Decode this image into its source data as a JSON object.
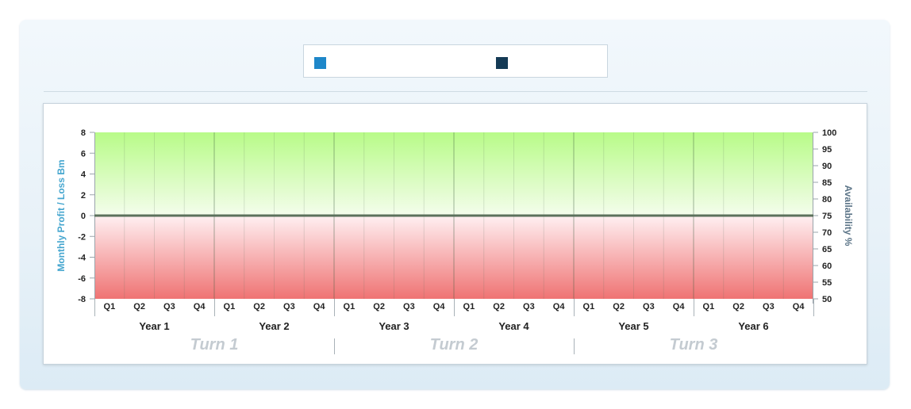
{
  "legend": {
    "items": [
      {
        "color": "#1e87c9",
        "label": ""
      },
      {
        "color": "#143a55",
        "label": ""
      }
    ]
  },
  "chart_data": {
    "type": "line",
    "categories": [
      "Q1",
      "Q2",
      "Q3",
      "Q4",
      "Q1",
      "Q2",
      "Q3",
      "Q4",
      "Q1",
      "Q2",
      "Q3",
      "Q4",
      "Q1",
      "Q2",
      "Q3",
      "Q4",
      "Q1",
      "Q2",
      "Q3",
      "Q4",
      "Q1",
      "Q2",
      "Q3",
      "Q4"
    ],
    "years": [
      "Year 1",
      "Year 2",
      "Year 3",
      "Year 4",
      "Year 5",
      "Year 6"
    ],
    "turns": [
      "Turn 1",
      "Turn 2",
      "Turn 3"
    ],
    "series": [],
    "ylabel": "Monthly Profit / Loss Bm",
    "ylim": [
      -8,
      8
    ],
    "yticks": [
      "8",
      "6",
      "4",
      "2",
      "0",
      "-2",
      "-4",
      "-6",
      "-8"
    ],
    "y2label": "Availability %",
    "y2lim": [
      50,
      100
    ],
    "y2ticks": [
      "100",
      "95",
      "90",
      "85",
      "80",
      "75",
      "70",
      "65",
      "60",
      "55",
      "50"
    ],
    "zero_line": 0,
    "grid": true,
    "colors": {
      "positive_top": "#b8fb88",
      "positive_bottom": "#f4fdec",
      "negative_top": "#fff0f2",
      "negative_bottom": "#ef7373",
      "zero_line": "#5c715c",
      "left_axis_title": "#45a6cf",
      "right_axis_title": "#5b7487"
    }
  }
}
